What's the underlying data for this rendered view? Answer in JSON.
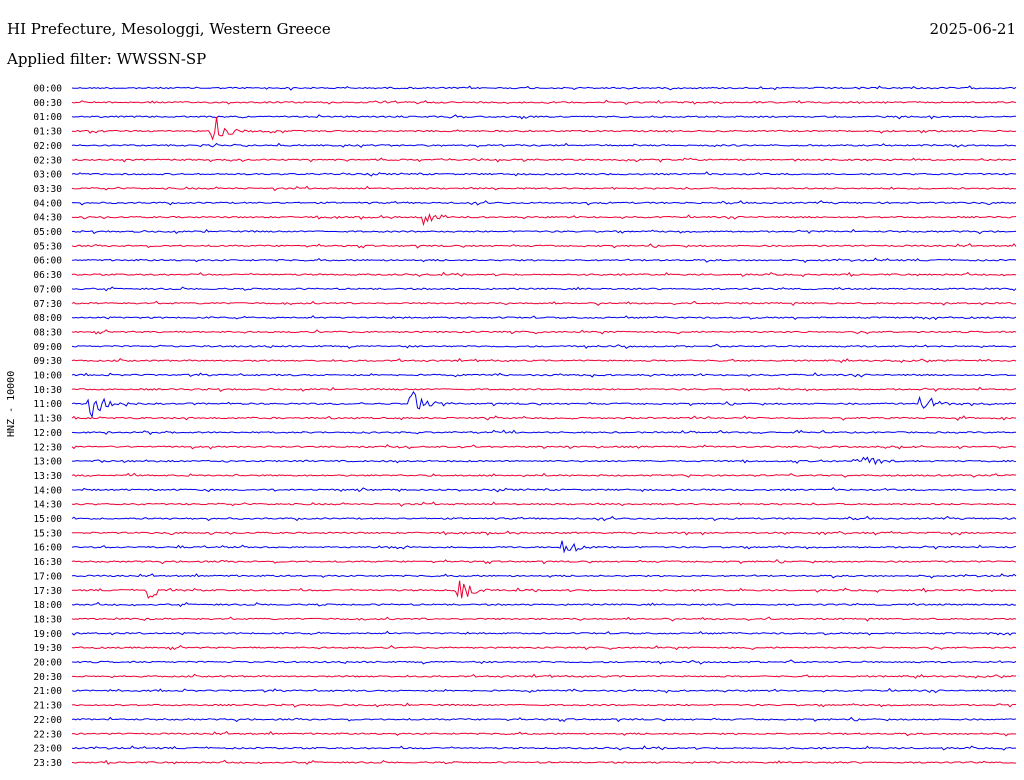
{
  "header": {
    "title": "HI Prefecture, Mesologgi, Western Greece",
    "date": "2025-06-21",
    "filter": "Applied filter: WWSSN-SP"
  },
  "chart_data": {
    "type": "line",
    "title": "HI Prefecture, Mesologgi, Western Greece",
    "subtitle": "Applied filter: WWSSN-SP",
    "date": "2025-06-21",
    "ylabel": "HNZ - 10000",
    "xlabel": "",
    "grid": false,
    "legend": "none",
    "row_colors": [
      "#0000ee",
      "#ee0033"
    ],
    "rows": [
      {
        "label": "00:00",
        "events": []
      },
      {
        "label": "00:30",
        "events": []
      },
      {
        "label": "01:00",
        "events": []
      },
      {
        "label": "01:30",
        "events": [
          {
            "t": 0.15,
            "amp": 20
          }
        ]
      },
      {
        "label": "02:00",
        "events": []
      },
      {
        "label": "02:30",
        "events": []
      },
      {
        "label": "03:00",
        "events": []
      },
      {
        "label": "03:30",
        "events": []
      },
      {
        "label": "04:00",
        "events": []
      },
      {
        "label": "04:30",
        "events": [
          {
            "t": 0.37,
            "amp": 12
          }
        ]
      },
      {
        "label": "05:00",
        "events": []
      },
      {
        "label": "05:30",
        "events": []
      },
      {
        "label": "06:00",
        "events": []
      },
      {
        "label": "06:30",
        "events": []
      },
      {
        "label": "07:00",
        "events": []
      },
      {
        "label": "07:30",
        "events": []
      },
      {
        "label": "08:00",
        "events": []
      },
      {
        "label": "08:30",
        "events": []
      },
      {
        "label": "09:00",
        "events": []
      },
      {
        "label": "09:30",
        "events": []
      },
      {
        "label": "10:00",
        "events": []
      },
      {
        "label": "10:30",
        "events": []
      },
      {
        "label": "11:00",
        "events": [
          {
            "t": 0.02,
            "amp": 16
          },
          {
            "t": 0.36,
            "amp": 16
          },
          {
            "t": 0.9,
            "amp": 14
          }
        ]
      },
      {
        "label": "11:30",
        "events": []
      },
      {
        "label": "12:00",
        "events": []
      },
      {
        "label": "12:30",
        "events": []
      },
      {
        "label": "13:00",
        "events": [
          {
            "t": 0.84,
            "amp": 10
          }
        ]
      },
      {
        "label": "13:30",
        "events": []
      },
      {
        "label": "14:00",
        "events": []
      },
      {
        "label": "14:30",
        "events": []
      },
      {
        "label": "15:00",
        "events": []
      },
      {
        "label": "15:30",
        "events": []
      },
      {
        "label": "16:00",
        "events": [
          {
            "t": 0.52,
            "amp": 12
          }
        ]
      },
      {
        "label": "16:30",
        "events": []
      },
      {
        "label": "17:00",
        "events": []
      },
      {
        "label": "17:30",
        "events": [
          {
            "t": 0.08,
            "amp": 10
          },
          {
            "t": 0.41,
            "amp": 14
          }
        ]
      },
      {
        "label": "18:00",
        "events": []
      },
      {
        "label": "18:30",
        "events": []
      },
      {
        "label": "19:00",
        "events": []
      },
      {
        "label": "19:30",
        "events": []
      },
      {
        "label": "20:00",
        "events": []
      },
      {
        "label": "20:30",
        "events": []
      },
      {
        "label": "21:00",
        "events": []
      },
      {
        "label": "21:30",
        "events": []
      },
      {
        "label": "22:00",
        "events": []
      },
      {
        "label": "22:30",
        "events": []
      },
      {
        "label": "23:00",
        "events": []
      },
      {
        "label": "23:30",
        "events": []
      }
    ]
  }
}
